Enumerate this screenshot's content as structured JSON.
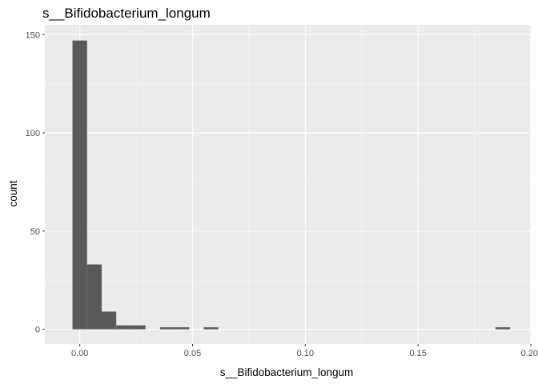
{
  "chart_data": {
    "type": "bar",
    "title": "s__Bifidobacterium_longum",
    "xlabel": "s__Bifidobacterium_longum",
    "ylabel": "count",
    "xlim": [
      -0.0155,
      0.2
    ],
    "ylim": [
      -7.5,
      155
    ],
    "x_ticks": [
      0.0,
      0.05,
      0.1,
      0.15,
      0.2
    ],
    "x_tick_labels": [
      "0.00",
      "0.05",
      "0.10",
      "0.15",
      "0.20"
    ],
    "y_ticks": [
      0,
      50,
      100,
      150
    ],
    "y_tick_labels": [
      "0",
      "50",
      "100",
      "150"
    ],
    "bin_width": 0.00647,
    "bins": [
      {
        "start": -0.00324,
        "count": 147
      },
      {
        "start": 0.00323,
        "count": 33
      },
      {
        "start": 0.0097,
        "count": 9
      },
      {
        "start": 0.01617,
        "count": 2
      },
      {
        "start": 0.02264,
        "count": 2
      },
      {
        "start": 0.0291,
        "count": 0
      },
      {
        "start": 0.03557,
        "count": 1
      },
      {
        "start": 0.04204,
        "count": 1
      },
      {
        "start": 0.04851,
        "count": 0
      },
      {
        "start": 0.05498,
        "count": 1
      },
      {
        "start": 0.18437,
        "count": 1
      }
    ],
    "grid": true,
    "colors": {
      "panel_background": "#ebebeb",
      "grid_major": "#ffffff",
      "grid_minor": "#f5f5f5",
      "bar_fill": "#595959",
      "tick_label": "#4d4d4d",
      "tick_mark": "#333333"
    }
  }
}
